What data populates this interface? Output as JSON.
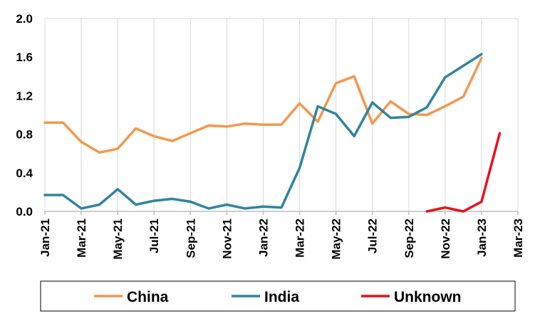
{
  "chart_data": {
    "type": "line",
    "title": "",
    "xlabel": "",
    "ylabel": "",
    "ylim": [
      0,
      2.0
    ],
    "y_ticks": [
      "0.0",
      "0.4",
      "0.8",
      "1.2",
      "1.6",
      "2.0"
    ],
    "x_ticks": [
      "Jan-21",
      "Mar-21",
      "May-21",
      "Jul-21",
      "Sep-21",
      "Nov-21",
      "Jan-22",
      "Mar-22",
      "May-22",
      "Jul-22",
      "Sep-22",
      "Nov-22",
      "Jan-23",
      "Mar-23"
    ],
    "x_months": [
      "2021-01",
      "2021-02",
      "2021-03",
      "2021-04",
      "2021-05",
      "2021-06",
      "2021-07",
      "2021-08",
      "2021-09",
      "2021-10",
      "2021-11",
      "2021-12",
      "2022-01",
      "2022-02",
      "2022-03",
      "2022-04",
      "2022-05",
      "2022-06",
      "2022-07",
      "2022-08",
      "2022-09",
      "2022-10",
      "2022-11",
      "2022-12",
      "2023-01",
      "2023-02",
      "2023-03"
    ],
    "grid": "vertical",
    "legend_position": "bottom",
    "series": [
      {
        "name": "China",
        "color": "#F4984F",
        "x": [
          "2021-01",
          "2021-02",
          "2021-03",
          "2021-04",
          "2021-05",
          "2021-06",
          "2021-07",
          "2021-08",
          "2021-09",
          "2021-10",
          "2021-11",
          "2021-12",
          "2022-01",
          "2022-02",
          "2022-03",
          "2022-04",
          "2022-05",
          "2022-06",
          "2022-07",
          "2022-08",
          "2022-09",
          "2022-10",
          "2022-11",
          "2022-12",
          "2023-01"
        ],
        "values": [
          0.92,
          0.92,
          0.72,
          0.61,
          0.65,
          0.86,
          0.78,
          0.73,
          0.81,
          0.89,
          0.88,
          0.91,
          0.9,
          0.9,
          1.12,
          0.93,
          1.33,
          1.4,
          0.91,
          1.14,
          1.01,
          1.0,
          1.09,
          1.19,
          1.59
        ]
      },
      {
        "name": "India",
        "color": "#31859C",
        "x": [
          "2021-01",
          "2021-02",
          "2021-03",
          "2021-04",
          "2021-05",
          "2021-06",
          "2021-07",
          "2021-08",
          "2021-09",
          "2021-10",
          "2021-11",
          "2021-12",
          "2022-01",
          "2022-02",
          "2022-03",
          "2022-04",
          "2022-05",
          "2022-06",
          "2022-07",
          "2022-08",
          "2022-09",
          "2022-10",
          "2022-11",
          "2022-12",
          "2023-01"
        ],
        "values": [
          0.17,
          0.17,
          0.03,
          0.07,
          0.23,
          0.07,
          0.11,
          0.13,
          0.1,
          0.03,
          0.07,
          0.03,
          0.05,
          0.04,
          0.45,
          1.09,
          1.01,
          0.78,
          1.13,
          0.97,
          0.98,
          1.08,
          1.39,
          1.51,
          1.63
        ]
      },
      {
        "name": "Unknown",
        "color": "#E8121B",
        "x": [
          "2022-10",
          "2022-11",
          "2022-12",
          "2023-01",
          "2023-02"
        ],
        "values": [
          0.0,
          0.04,
          0.0,
          0.1,
          0.81
        ]
      }
    ]
  }
}
